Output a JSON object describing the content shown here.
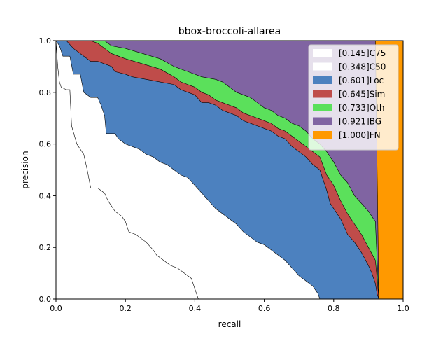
{
  "chart_data": {
    "type": "area",
    "title": "bbox-broccoli-allarea",
    "xlabel": "recall",
    "ylabel": "precision",
    "xlim": [
      0,
      1
    ],
    "ylim": [
      0,
      1
    ],
    "xticks": [
      "0.0",
      "0.2",
      "0.4",
      "0.6",
      "0.8",
      "1.0"
    ],
    "yticks": [
      "0.0",
      "0.2",
      "0.4",
      "0.6",
      "0.8",
      "1.0"
    ],
    "grid": false,
    "legend_position": "top-right",
    "series": [
      {
        "name": "[0.145]C75",
        "color": "#ffffff",
        "points": [
          [
            0,
            1.0
          ],
          [
            0.005,
            0.9
          ],
          [
            0.01,
            0.84
          ],
          [
            0.015,
            0.82
          ],
          [
            0.03,
            0.81
          ],
          [
            0.04,
            0.81
          ],
          [
            0.045,
            0.67
          ],
          [
            0.06,
            0.6
          ],
          [
            0.08,
            0.56
          ],
          [
            0.09,
            0.5
          ],
          [
            0.1,
            0.43
          ],
          [
            0.12,
            0.43
          ],
          [
            0.13,
            0.42
          ],
          [
            0.14,
            0.41
          ],
          [
            0.15,
            0.38
          ],
          [
            0.16,
            0.36
          ],
          [
            0.17,
            0.34
          ],
          [
            0.19,
            0.32
          ],
          [
            0.2,
            0.3
          ],
          [
            0.21,
            0.26
          ],
          [
            0.23,
            0.25
          ],
          [
            0.24,
            0.24
          ],
          [
            0.26,
            0.22
          ],
          [
            0.28,
            0.19
          ],
          [
            0.29,
            0.17
          ],
          [
            0.31,
            0.15
          ],
          [
            0.33,
            0.13
          ],
          [
            0.35,
            0.12
          ],
          [
            0.37,
            0.1
          ],
          [
            0.39,
            0.08
          ],
          [
            0.395,
            0.06
          ],
          [
            0.4,
            0.04
          ],
          [
            0.405,
            0.02
          ],
          [
            0.41,
            0.0
          ]
        ]
      },
      {
        "name": "[0.348]C50",
        "color": "#ffffff",
        "points": [
          [
            0,
            1.0
          ],
          [
            0.01,
            0.98
          ],
          [
            0.02,
            0.94
          ],
          [
            0.04,
            0.94
          ],
          [
            0.05,
            0.87
          ],
          [
            0.07,
            0.87
          ],
          [
            0.08,
            0.8
          ],
          [
            0.1,
            0.78
          ],
          [
            0.12,
            0.78
          ],
          [
            0.13,
            0.75
          ],
          [
            0.14,
            0.71
          ],
          [
            0.145,
            0.64
          ],
          [
            0.17,
            0.64
          ],
          [
            0.18,
            0.62
          ],
          [
            0.19,
            0.61
          ],
          [
            0.2,
            0.6
          ],
          [
            0.22,
            0.59
          ],
          [
            0.24,
            0.58
          ],
          [
            0.26,
            0.56
          ],
          [
            0.28,
            0.55
          ],
          [
            0.3,
            0.53
          ],
          [
            0.32,
            0.52
          ],
          [
            0.34,
            0.5
          ],
          [
            0.36,
            0.48
          ],
          [
            0.38,
            0.47
          ],
          [
            0.4,
            0.44
          ],
          [
            0.42,
            0.41
          ],
          [
            0.44,
            0.38
          ],
          [
            0.46,
            0.35
          ],
          [
            0.48,
            0.33
          ],
          [
            0.5,
            0.31
          ],
          [
            0.52,
            0.29
          ],
          [
            0.54,
            0.26
          ],
          [
            0.56,
            0.24
          ],
          [
            0.58,
            0.22
          ],
          [
            0.6,
            0.21
          ],
          [
            0.62,
            0.19
          ],
          [
            0.64,
            0.17
          ],
          [
            0.66,
            0.15
          ],
          [
            0.68,
            0.12
          ],
          [
            0.7,
            0.09
          ],
          [
            0.72,
            0.07
          ],
          [
            0.74,
            0.05
          ],
          [
            0.75,
            0.03
          ],
          [
            0.755,
            0.02
          ],
          [
            0.76,
            0.0
          ]
        ]
      },
      {
        "name": "[0.601]Loc",
        "color": "#4c81bf",
        "points": [
          [
            0,
            1.0
          ],
          [
            0.03,
            1.0
          ],
          [
            0.05,
            0.97
          ],
          [
            0.07,
            0.95
          ],
          [
            0.09,
            0.93
          ],
          [
            0.1,
            0.92
          ],
          [
            0.12,
            0.92
          ],
          [
            0.14,
            0.91
          ],
          [
            0.16,
            0.9
          ],
          [
            0.17,
            0.88
          ],
          [
            0.2,
            0.87
          ],
          [
            0.22,
            0.86
          ],
          [
            0.26,
            0.85
          ],
          [
            0.3,
            0.84
          ],
          [
            0.34,
            0.83
          ],
          [
            0.36,
            0.81
          ],
          [
            0.38,
            0.8
          ],
          [
            0.4,
            0.79
          ],
          [
            0.42,
            0.76
          ],
          [
            0.44,
            0.76
          ],
          [
            0.46,
            0.75
          ],
          [
            0.48,
            0.73
          ],
          [
            0.5,
            0.72
          ],
          [
            0.52,
            0.71
          ],
          [
            0.54,
            0.69
          ],
          [
            0.56,
            0.68
          ],
          [
            0.58,
            0.67
          ],
          [
            0.6,
            0.66
          ],
          [
            0.62,
            0.65
          ],
          [
            0.64,
            0.63
          ],
          [
            0.66,
            0.62
          ],
          [
            0.68,
            0.59
          ],
          [
            0.7,
            0.57
          ],
          [
            0.72,
            0.55
          ],
          [
            0.74,
            0.52
          ],
          [
            0.76,
            0.5
          ],
          [
            0.78,
            0.42
          ],
          [
            0.79,
            0.37
          ],
          [
            0.8,
            0.35
          ],
          [
            0.82,
            0.31
          ],
          [
            0.84,
            0.25
          ],
          [
            0.86,
            0.22
          ],
          [
            0.88,
            0.18
          ],
          [
            0.9,
            0.13
          ],
          [
            0.91,
            0.1
          ],
          [
            0.92,
            0.06
          ],
          [
            0.925,
            0.02
          ],
          [
            0.93,
            0.0
          ]
        ]
      },
      {
        "name": "[0.645]Sim",
        "color": "#bf4c4a",
        "points": [
          [
            0,
            1.0
          ],
          [
            0.1,
            1.0
          ],
          [
            0.12,
            0.99
          ],
          [
            0.14,
            0.97
          ],
          [
            0.16,
            0.95
          ],
          [
            0.2,
            0.93
          ],
          [
            0.25,
            0.91
          ],
          [
            0.3,
            0.89
          ],
          [
            0.34,
            0.86
          ],
          [
            0.36,
            0.84
          ],
          [
            0.38,
            0.83
          ],
          [
            0.4,
            0.82
          ],
          [
            0.42,
            0.8
          ],
          [
            0.44,
            0.79
          ],
          [
            0.46,
            0.77
          ],
          [
            0.48,
            0.76
          ],
          [
            0.5,
            0.75
          ],
          [
            0.52,
            0.74
          ],
          [
            0.54,
            0.72
          ],
          [
            0.56,
            0.71
          ],
          [
            0.58,
            0.7
          ],
          [
            0.6,
            0.69
          ],
          [
            0.62,
            0.68
          ],
          [
            0.64,
            0.66
          ],
          [
            0.66,
            0.65
          ],
          [
            0.68,
            0.63
          ],
          [
            0.7,
            0.61
          ],
          [
            0.72,
            0.59
          ],
          [
            0.74,
            0.57
          ],
          [
            0.76,
            0.55
          ],
          [
            0.78,
            0.48
          ],
          [
            0.8,
            0.44
          ],
          [
            0.82,
            0.38
          ],
          [
            0.84,
            0.33
          ],
          [
            0.86,
            0.29
          ],
          [
            0.88,
            0.25
          ],
          [
            0.9,
            0.2
          ],
          [
            0.92,
            0.15
          ],
          [
            0.925,
            0.08
          ],
          [
            0.93,
            0.0
          ]
        ]
      },
      {
        "name": "[0.733]Oth",
        "color": "#5be05b",
        "points": [
          [
            0,
            1.0
          ],
          [
            0.14,
            1.0
          ],
          [
            0.16,
            0.98
          ],
          [
            0.2,
            0.97
          ],
          [
            0.25,
            0.95
          ],
          [
            0.3,
            0.93
          ],
          [
            0.34,
            0.9
          ],
          [
            0.38,
            0.88
          ],
          [
            0.42,
            0.86
          ],
          [
            0.46,
            0.85
          ],
          [
            0.48,
            0.84
          ],
          [
            0.5,
            0.82
          ],
          [
            0.52,
            0.8
          ],
          [
            0.56,
            0.78
          ],
          [
            0.58,
            0.76
          ],
          [
            0.6,
            0.74
          ],
          [
            0.62,
            0.73
          ],
          [
            0.64,
            0.71
          ],
          [
            0.66,
            0.7
          ],
          [
            0.68,
            0.68
          ],
          [
            0.7,
            0.67
          ],
          [
            0.72,
            0.65
          ],
          [
            0.74,
            0.62
          ],
          [
            0.76,
            0.6
          ],
          [
            0.78,
            0.57
          ],
          [
            0.8,
            0.53
          ],
          [
            0.82,
            0.48
          ],
          [
            0.84,
            0.45
          ],
          [
            0.86,
            0.4
          ],
          [
            0.88,
            0.37
          ],
          [
            0.9,
            0.34
          ],
          [
            0.92,
            0.3
          ],
          [
            0.925,
            0.15
          ],
          [
            0.93,
            0.0
          ]
        ]
      },
      {
        "name": "[0.921]BG",
        "color": "#8064a2",
        "points": [
          [
            0,
            1.0
          ],
          [
            0.92,
            1.0
          ],
          [
            0.925,
            0.5
          ],
          [
            0.93,
            0.0
          ]
        ]
      },
      {
        "name": "[1.000]FN",
        "color": "#ff9900",
        "points": [
          [
            0,
            1.0
          ],
          [
            1.0,
            1.0
          ],
          [
            1.0,
            0.0
          ]
        ]
      }
    ]
  }
}
